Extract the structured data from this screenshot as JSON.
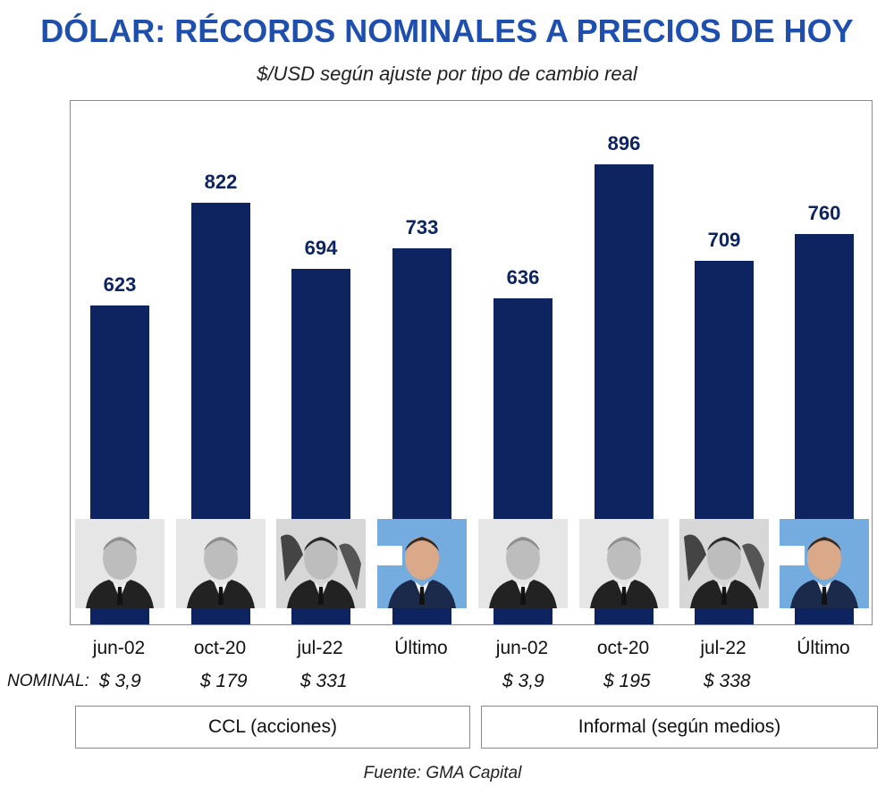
{
  "title": "DÓLAR: RÉCORDS NOMINALES A PRECIOS DE HOY",
  "subtitle": "$/USD según ajuste por tipo de cambio real",
  "source": "Fuente: GMA Capital",
  "nominal_label": "NOMINAL:",
  "colors": {
    "bar": "#0d2461",
    "title": "#1f4fae",
    "flag_blue": "#74acdf"
  },
  "groups": [
    "CCL (acciones)",
    "Informal (según medios)"
  ],
  "chart_data": {
    "type": "bar",
    "title": "DÓLAR: RÉCORDS NOMINALES A PRECIOS DE HOY",
    "subtitle": "$/USD según ajuste por tipo de cambio real",
    "categories": [
      "jun-02",
      "oct-20",
      "jul-22",
      "Último",
      "jun-02",
      "oct-20",
      "jul-22",
      "Último"
    ],
    "values": [
      623,
      822,
      694,
      733,
      636,
      896,
      709,
      760
    ],
    "value_labels": [
      "623",
      "822",
      "694",
      "733",
      "636",
      "896",
      "709",
      "760"
    ],
    "nominal": [
      "$ 3,9",
      "$ 179",
      "$ 331",
      "",
      "$ 3,9",
      "$ 195",
      "$ 338",
      ""
    ],
    "group_of_bar": [
      0,
      0,
      0,
      0,
      1,
      1,
      1,
      1
    ],
    "photos": [
      "portrait-grayscale-1",
      "portrait-grayscale-2",
      "portrait-grayscale-3",
      "portrait-color-flag",
      "portrait-grayscale-1",
      "portrait-grayscale-2",
      "portrait-grayscale-3",
      "portrait-color-flag"
    ],
    "ylim": [
      0,
      1000
    ],
    "grid": false,
    "legend": "none"
  }
}
